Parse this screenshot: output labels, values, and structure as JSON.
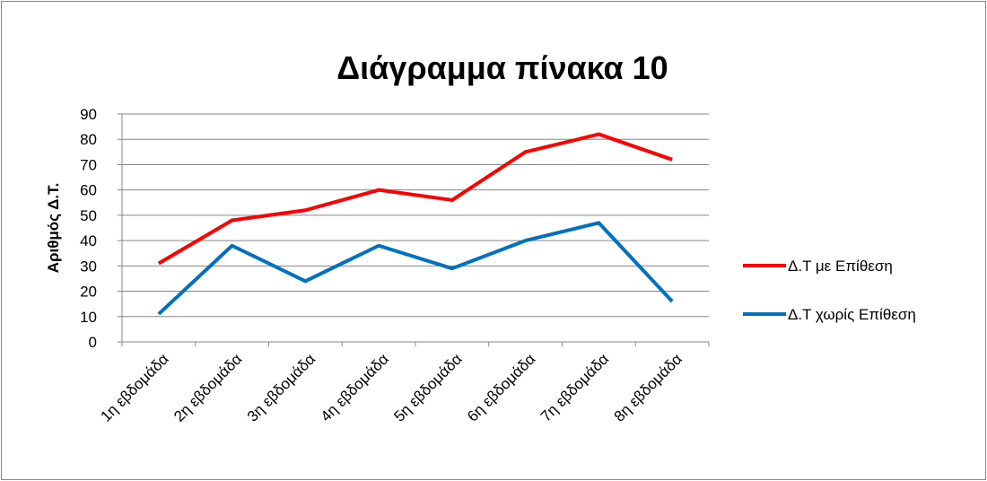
{
  "chart_data": {
    "type": "line",
    "title": "Διάγραμμα πίνακα 10",
    "y_label": "Αριθμός Δ.Τ.",
    "categories": [
      "1η εβδομάδα",
      "2η εβδομάδα",
      "3η εβδομάδα",
      "4η εβδομάδα",
      "5η εβδομάδα",
      "6η εβδομάδα",
      "7η εβδομάδα",
      "8η εβδομάδα"
    ],
    "series": [
      {
        "name": "Δ.Τ με Επίθεση",
        "color": "#ff0000",
        "values": [
          31,
          48,
          52,
          60,
          56,
          75,
          82,
          72
        ]
      },
      {
        "name": "Δ.Τ χωρίς Επίθεση",
        "color": "#0070c0",
        "values": [
          11,
          38,
          24,
          38,
          29,
          40,
          47,
          16
        ]
      }
    ],
    "ylim": [
      0,
      90
    ],
    "yticks": [
      0,
      10,
      20,
      30,
      40,
      50,
      60,
      70,
      80,
      90
    ],
    "grid": true,
    "legend": "right"
  }
}
